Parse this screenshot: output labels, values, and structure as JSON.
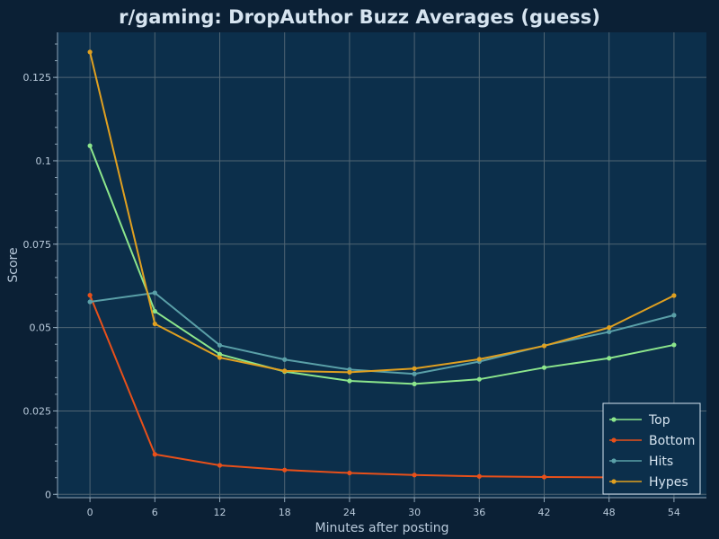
{
  "chart_data": {
    "type": "line",
    "title": "r/gaming: DropAuthor Buzz Averages (guess)",
    "xlabel": "Minutes after posting",
    "ylabel": "Score",
    "x": [
      0,
      6,
      12,
      18,
      24,
      30,
      36,
      42,
      48,
      54
    ],
    "xticks": [
      "0",
      "6",
      "12",
      "18",
      "24",
      "30",
      "36",
      "42",
      "48",
      "54"
    ],
    "yticks": [
      0,
      0.025,
      0.05,
      0.075,
      0.1,
      0.125
    ],
    "ytick_labels": [
      "0",
      "0.025",
      "0.05",
      "0.075",
      "0.1",
      "0.125"
    ],
    "xlim": [
      -3,
      57
    ],
    "ylim": [
      -0.001,
      0.1385
    ],
    "grid": true,
    "legend_position": "bottom-right",
    "series": [
      {
        "name": "Top",
        "color": "#8ce68c",
        "values": [
          0.1045,
          0.0549,
          0.042,
          0.0368,
          0.034,
          0.0331,
          0.0345,
          0.038,
          0.0408,
          0.0448
        ]
      },
      {
        "name": "Bottom",
        "color": "#e8501a",
        "values": [
          0.0597,
          0.012,
          0.0087,
          0.0073,
          0.0064,
          0.0058,
          0.0054,
          0.0052,
          0.0051,
          0.0051
        ]
      },
      {
        "name": "Hits",
        "color": "#5aa0a8",
        "values": [
          0.0577,
          0.0604,
          0.0447,
          0.0404,
          0.0374,
          0.0361,
          0.0398,
          0.0446,
          0.0487,
          0.0537
        ]
      },
      {
        "name": "Hypes",
        "color": "#e0a020",
        "values": [
          0.1326,
          0.0511,
          0.041,
          0.037,
          0.0366,
          0.0377,
          0.0405,
          0.0445,
          0.05,
          0.0596
        ]
      }
    ]
  }
}
